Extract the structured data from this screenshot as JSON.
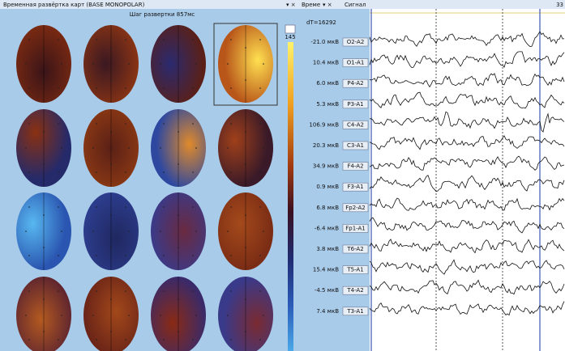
{
  "left_panel": {
    "title": "Временная развёртка карт (BASE MONOPOLAR)",
    "step": "Шаг развертки 857мс",
    "scale_max": 145
  },
  "middle_panel": {
    "column_header": "Време",
    "delta_t": "dT=16292",
    "channels": [
      {
        "value": "-21.0 мкВ",
        "label": "O2-A2"
      },
      {
        "value": "10.4 мкВ",
        "label": "O1-A1"
      },
      {
        "value": "6.0 мкВ",
        "label": "P4-A2"
      },
      {
        "value": "5.3 мкВ",
        "label": "P3-A1"
      },
      {
        "value": "106.9 мкВ",
        "label": "C4-A2"
      },
      {
        "value": "20.3 мкВ",
        "label": "C3-A1"
      },
      {
        "value": "34.9 мкВ",
        "label": "F4-A2"
      },
      {
        "value": "0.9 мкВ",
        "label": "F3-A1"
      },
      {
        "value": "6.8 мкВ",
        "label": "Fp2-A2"
      },
      {
        "value": "-6.4 мкВ",
        "label": "Fp1-A1"
      },
      {
        "value": "3.8 мкВ",
        "label": "T6-A2"
      },
      {
        "value": "15.4 мкВ",
        "label": "T5-A1"
      },
      {
        "value": "-4.5 мкВ",
        "label": "T4-A2"
      },
      {
        "value": "7.4 мкВ",
        "label": "T3-A1"
      }
    ]
  },
  "signal_panel": {
    "title": "Сигнал",
    "time_label": "33"
  }
}
